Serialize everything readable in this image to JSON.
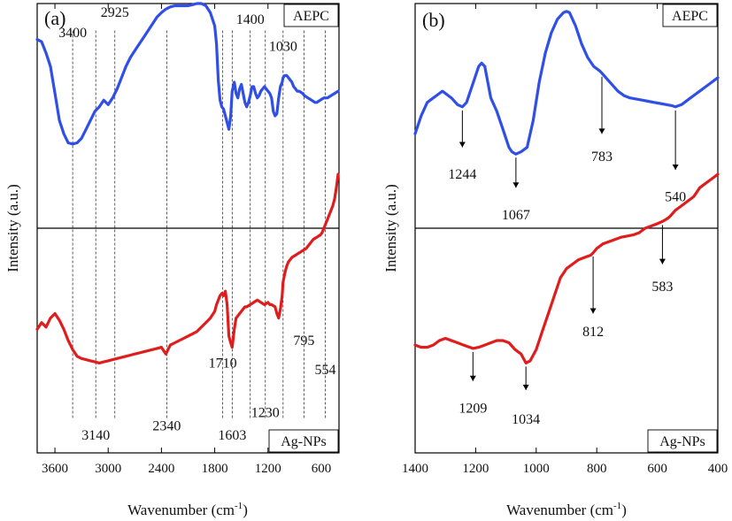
{
  "chart_data": [
    {
      "type": "line",
      "panel_label": "(a)",
      "xlabel": "Wavenumber (cm-1)",
      "xlabel_parts": {
        "main": "Wavenumber (cm",
        "sup": "-1",
        "close": ")"
      },
      "ylabel": "Intensity (a.u.)",
      "xlim": [
        3800,
        400
      ],
      "ylim": [
        0,
        2
      ],
      "xticks": [
        3600,
        3000,
        2400,
        1800,
        1200,
        600
      ],
      "xtick_labels": [
        "3600",
        "3000",
        "2400",
        "1800",
        "1200",
        "600"
      ],
      "series": [
        {
          "name": "AEPC",
          "color": "#2f4fe6",
          "x": [
            3800,
            3750,
            3700,
            3650,
            3600,
            3550,
            3500,
            3450,
            3400,
            3350,
            3300,
            3250,
            3200,
            3150,
            3100,
            3050,
            3000,
            2950,
            2900,
            2850,
            2800,
            2750,
            2700,
            2650,
            2600,
            2550,
            2500,
            2450,
            2400,
            2350,
            2300,
            2250,
            2200,
            2150,
            2100,
            2050,
            2000,
            1950,
            1900,
            1850,
            1800,
            1780,
            1760,
            1740,
            1720,
            1700,
            1680,
            1660,
            1640,
            1620,
            1603,
            1580,
            1560,
            1540,
            1520,
            1500,
            1480,
            1460,
            1440,
            1420,
            1400,
            1380,
            1360,
            1340,
            1320,
            1300,
            1280,
            1260,
            1240,
            1220,
            1200,
            1180,
            1160,
            1140,
            1120,
            1100,
            1080,
            1060,
            1040,
            1030,
            1010,
            990,
            970,
            950,
            930,
            910,
            890,
            870,
            850,
            830,
            810,
            790,
            770,
            750,
            730,
            710,
            690,
            670,
            650,
            630,
            610,
            590,
            570,
            550,
            530,
            510,
            490,
            470,
            450,
            430,
            410
          ],
          "y": [
            1.84,
            1.83,
            1.78,
            1.72,
            1.6,
            1.48,
            1.42,
            1.38,
            1.375,
            1.38,
            1.4,
            1.44,
            1.48,
            1.52,
            1.54,
            1.57,
            1.55,
            1.58,
            1.62,
            1.67,
            1.72,
            1.76,
            1.79,
            1.82,
            1.85,
            1.88,
            1.91,
            1.94,
            1.96,
            1.975,
            1.985,
            1.99,
            1.99,
            1.99,
            1.99,
            1.995,
            2.0,
            2.0,
            1.99,
            1.96,
            1.9,
            1.82,
            1.66,
            1.57,
            1.54,
            1.53,
            1.5,
            1.47,
            1.44,
            1.5,
            1.61,
            1.65,
            1.6,
            1.58,
            1.62,
            1.64,
            1.6,
            1.56,
            1.54,
            1.56,
            1.59,
            1.63,
            1.63,
            1.6,
            1.58,
            1.59,
            1.61,
            1.62,
            1.63,
            1.62,
            1.61,
            1.6,
            1.58,
            1.52,
            1.5,
            1.51,
            1.58,
            1.63,
            1.65,
            1.67,
            1.68,
            1.68,
            1.67,
            1.66,
            1.65,
            1.63,
            1.62,
            1.61,
            1.61,
            1.605,
            1.6,
            1.59,
            1.585,
            1.58,
            1.575,
            1.57,
            1.565,
            1.56,
            1.56,
            1.565,
            1.57,
            1.575,
            1.58,
            1.58,
            1.58,
            1.585,
            1.59,
            1.595,
            1.6,
            1.605,
            1.61
          ]
        },
        {
          "name": "Ag-NPs",
          "color": "#e01d1d",
          "x": [
            3800,
            3750,
            3700,
            3650,
            3600,
            3550,
            3500,
            3450,
            3400,
            3350,
            3300,
            3250,
            3200,
            3150,
            3100,
            3050,
            3000,
            2950,
            2900,
            2850,
            2800,
            2750,
            2700,
            2650,
            2600,
            2550,
            2500,
            2450,
            2400,
            2350,
            2300,
            2250,
            2200,
            2150,
            2100,
            2050,
            2000,
            1950,
            1900,
            1850,
            1800,
            1780,
            1760,
            1740,
            1720,
            1700,
            1680,
            1660,
            1640,
            1620,
            1603,
            1580,
            1560,
            1540,
            1520,
            1500,
            1480,
            1460,
            1440,
            1420,
            1400,
            1380,
            1360,
            1340,
            1320,
            1300,
            1280,
            1260,
            1240,
            1220,
            1200,
            1180,
            1160,
            1140,
            1120,
            1100,
            1080,
            1060,
            1040,
            1030,
            1010,
            990,
            970,
            950,
            930,
            910,
            890,
            870,
            850,
            830,
            810,
            790,
            770,
            750,
            730,
            710,
            690,
            670,
            650,
            630,
            610,
            590,
            570,
            550,
            530,
            510,
            490,
            470,
            450,
            430,
            410
          ],
          "y": [
            0.55,
            0.58,
            0.56,
            0.6,
            0.62,
            0.59,
            0.55,
            0.5,
            0.46,
            0.43,
            0.42,
            0.415,
            0.41,
            0.405,
            0.4,
            0.405,
            0.41,
            0.415,
            0.42,
            0.425,
            0.43,
            0.435,
            0.44,
            0.445,
            0.45,
            0.455,
            0.46,
            0.465,
            0.47,
            0.44,
            0.48,
            0.49,
            0.5,
            0.51,
            0.52,
            0.53,
            0.54,
            0.56,
            0.58,
            0.6,
            0.63,
            0.66,
            0.68,
            0.7,
            0.71,
            0.7,
            0.72,
            0.66,
            0.52,
            0.49,
            0.47,
            0.55,
            0.6,
            0.61,
            0.62,
            0.63,
            0.64,
            0.65,
            0.65,
            0.655,
            0.66,
            0.665,
            0.67,
            0.675,
            0.68,
            0.675,
            0.67,
            0.665,
            0.66,
            0.665,
            0.67,
            0.66,
            0.66,
            0.655,
            0.65,
            0.62,
            0.6,
            0.64,
            0.7,
            0.76,
            0.8,
            0.83,
            0.85,
            0.86,
            0.87,
            0.875,
            0.88,
            0.885,
            0.89,
            0.895,
            0.9,
            0.905,
            0.91,
            0.92,
            0.93,
            0.94,
            0.95,
            0.955,
            0.96,
            0.965,
            0.97,
            0.98,
            1.0,
            1.02,
            1.04,
            1.06,
            1.08,
            1.1,
            1.13,
            1.18,
            1.24
          ]
        }
      ],
      "guide_lines": [
        3400,
        3140,
        2925,
        2340,
        1710,
        1603,
        1400,
        1230,
        1030,
        795,
        554
      ],
      "annotations": [
        {
          "text": "3400",
          "x": 3400,
          "y": 1.85
        },
        {
          "text": "2925",
          "x": 2925,
          "y": 1.94
        },
        {
          "text": "1400",
          "x": 1400,
          "y": 1.91
        },
        {
          "text": "1030",
          "x": 1030,
          "y": 1.79
        },
        {
          "text": "3140",
          "x": 3140,
          "y": 0.06
        },
        {
          "text": "2340",
          "x": 2340,
          "y": 0.1
        },
        {
          "text": "1710",
          "x": 1710,
          "y": 0.38
        },
        {
          "text": "1603",
          "x": 1603,
          "y": 0.06
        },
        {
          "text": "1230",
          "x": 1230,
          "y": 0.16
        },
        {
          "text": "795",
          "x": 795,
          "y": 0.48
        },
        {
          "text": "554",
          "x": 554,
          "y": 0.35
        }
      ],
      "tag_labels": {
        "top": "AEPC",
        "bottom": "Ag-NPs"
      }
    },
    {
      "type": "line",
      "panel_label": "(b)",
      "xlabel": "Wavenumber (cm-1)",
      "xlabel_parts": {
        "main": "Wavenumber (cm",
        "sup": "-1",
        "close": ")"
      },
      "ylabel": "Intensity (a.u.)",
      "xlim": [
        1400,
        400
      ],
      "ylim": [
        0,
        2
      ],
      "xticks": [
        1400,
        1200,
        1000,
        800,
        600,
        400
      ],
      "xtick_labels": [
        "1400",
        "1200",
        "1000",
        "800",
        "600",
        "400"
      ],
      "series": [
        {
          "name": "AEPC",
          "color": "#2f4fe6",
          "x": [
            1400,
            1380,
            1360,
            1340,
            1320,
            1310,
            1300,
            1280,
            1260,
            1244,
            1230,
            1210,
            1190,
            1180,
            1170,
            1150,
            1130,
            1110,
            1090,
            1080,
            1067,
            1050,
            1030,
            1010,
            990,
            970,
            950,
            930,
            910,
            900,
            890,
            870,
            850,
            830,
            810,
            790,
            783,
            770,
            750,
            730,
            710,
            690,
            670,
            650,
            630,
            610,
            590,
            570,
            550,
            540,
            520,
            500,
            480,
            460,
            440,
            420,
            400
          ],
          "y": [
            1.42,
            1.5,
            1.56,
            1.58,
            1.6,
            1.61,
            1.6,
            1.58,
            1.55,
            1.54,
            1.56,
            1.64,
            1.72,
            1.735,
            1.72,
            1.58,
            1.52,
            1.44,
            1.36,
            1.34,
            1.33,
            1.34,
            1.36,
            1.48,
            1.65,
            1.78,
            1.87,
            1.93,
            1.96,
            1.965,
            1.96,
            1.9,
            1.82,
            1.76,
            1.72,
            1.7,
            1.69,
            1.67,
            1.64,
            1.61,
            1.59,
            1.58,
            1.575,
            1.57,
            1.565,
            1.56,
            1.555,
            1.55,
            1.545,
            1.54,
            1.55,
            1.57,
            1.59,
            1.61,
            1.63,
            1.65,
            1.67
          ]
        },
        {
          "name": "Ag-NPs",
          "color": "#e01d1d",
          "x": [
            1400,
            1380,
            1360,
            1340,
            1320,
            1300,
            1280,
            1260,
            1240,
            1209,
            1190,
            1170,
            1150,
            1130,
            1110,
            1090,
            1070,
            1050,
            1034,
            1020,
            1000,
            980,
            960,
            940,
            920,
            900,
            880,
            860,
            840,
            820,
            812,
            800,
            780,
            760,
            740,
            720,
            700,
            680,
            660,
            640,
            620,
            600,
            583,
            570,
            560,
            540,
            520,
            500,
            480,
            470,
            460,
            440,
            420,
            400
          ],
          "y": [
            0.48,
            0.47,
            0.47,
            0.48,
            0.5,
            0.51,
            0.5,
            0.49,
            0.48,
            0.465,
            0.47,
            0.48,
            0.49,
            0.5,
            0.5,
            0.49,
            0.46,
            0.44,
            0.4,
            0.41,
            0.46,
            0.54,
            0.62,
            0.7,
            0.78,
            0.82,
            0.84,
            0.86,
            0.87,
            0.88,
            0.89,
            0.91,
            0.93,
            0.94,
            0.95,
            0.96,
            0.965,
            0.97,
            0.98,
            1.0,
            1.01,
            1.02,
            1.03,
            1.04,
            1.05,
            1.08,
            1.1,
            1.12,
            1.14,
            1.16,
            1.18,
            1.2,
            1.22,
            1.24
          ]
        }
      ],
      "annotations": [
        {
          "text": "1244",
          "x": 1244,
          "arrow_from": 1.54,
          "arrow_to": 1.36,
          "y": 1.22
        },
        {
          "text": "1067",
          "x": 1067,
          "arrow_from": 1.33,
          "arrow_to": 1.18,
          "y": 1.04
        },
        {
          "text": "783",
          "x": 783,
          "arrow_from": 1.69,
          "arrow_to": 1.42,
          "y": 1.3
        },
        {
          "text": "540",
          "x": 540,
          "arrow_from": 1.54,
          "arrow_to": 1.26,
          "y": 1.12
        },
        {
          "text": "1209",
          "x": 1209,
          "arrow_from": 0.465,
          "arrow_to": 0.32,
          "y": 0.18
        },
        {
          "text": "1034",
          "x": 1034,
          "arrow_from": 0.4,
          "arrow_to": 0.28,
          "y": 0.13
        },
        {
          "text": "812",
          "x": 812,
          "arrow_from": 0.89,
          "arrow_to": 0.62,
          "y": 0.52
        },
        {
          "text": "583",
          "x": 583,
          "arrow_from": 1.03,
          "arrow_to": 0.84,
          "y": 0.72
        }
      ],
      "tag_labels": {
        "top": "AEPC",
        "bottom": "Ag-NPs"
      }
    }
  ]
}
